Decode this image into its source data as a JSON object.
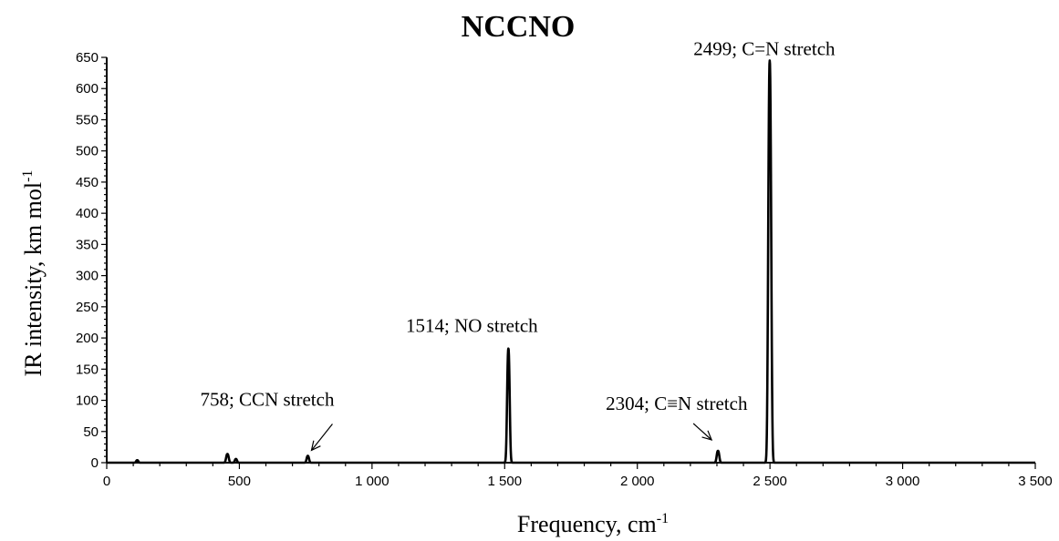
{
  "chart_data": {
    "type": "line",
    "title": "NCCNO",
    "xlabel": "Frequency, cm",
    "xlabel_sup": "-1",
    "ylabel": "IR intensity, km mol",
    "ylabel_sup": "-1",
    "xlim": [
      0,
      3500
    ],
    "ylim": [
      0,
      650
    ],
    "x_ticks": [
      0,
      500,
      1000,
      1500,
      2000,
      2500,
      3000,
      3500
    ],
    "x_tick_labels": [
      "0",
      "500",
      "1 000",
      "1 500",
      "2 000",
      "2 500",
      "3 000",
      "3 500"
    ],
    "y_ticks": [
      0,
      50,
      100,
      150,
      200,
      250,
      300,
      350,
      400,
      450,
      500,
      550,
      600,
      650
    ],
    "y_tick_labels": [
      "0",
      "50",
      "100",
      "150",
      "200",
      "250",
      "300",
      "350",
      "400",
      "450",
      "500",
      "550",
      "600",
      "650"
    ],
    "grid": false,
    "line_color": "#000000",
    "peaks": [
      {
        "x": 115,
        "y": 4,
        "width": 12
      },
      {
        "x": 455,
        "y": 14,
        "width": 14
      },
      {
        "x": 487,
        "y": 6,
        "width": 12
      },
      {
        "x": 758,
        "y": 11,
        "width": 13
      },
      {
        "x": 1514,
        "y": 183,
        "width": 14
      },
      {
        "x": 2304,
        "y": 19,
        "width": 14
      },
      {
        "x": 2499,
        "y": 645,
        "width": 16
      }
    ],
    "annotations": [
      {
        "text": "758; CCN stretch",
        "x": 758,
        "y": 11,
        "arrow": true
      },
      {
        "text": "1514; NO stretch",
        "x": 1514,
        "y": 183,
        "arrow": false
      },
      {
        "text": "2304; C≡N stretch",
        "x": 2304,
        "y": 19,
        "arrow": true
      },
      {
        "text": "2499; C=N stretch",
        "x": 2499,
        "y": 645,
        "arrow": false
      }
    ]
  }
}
